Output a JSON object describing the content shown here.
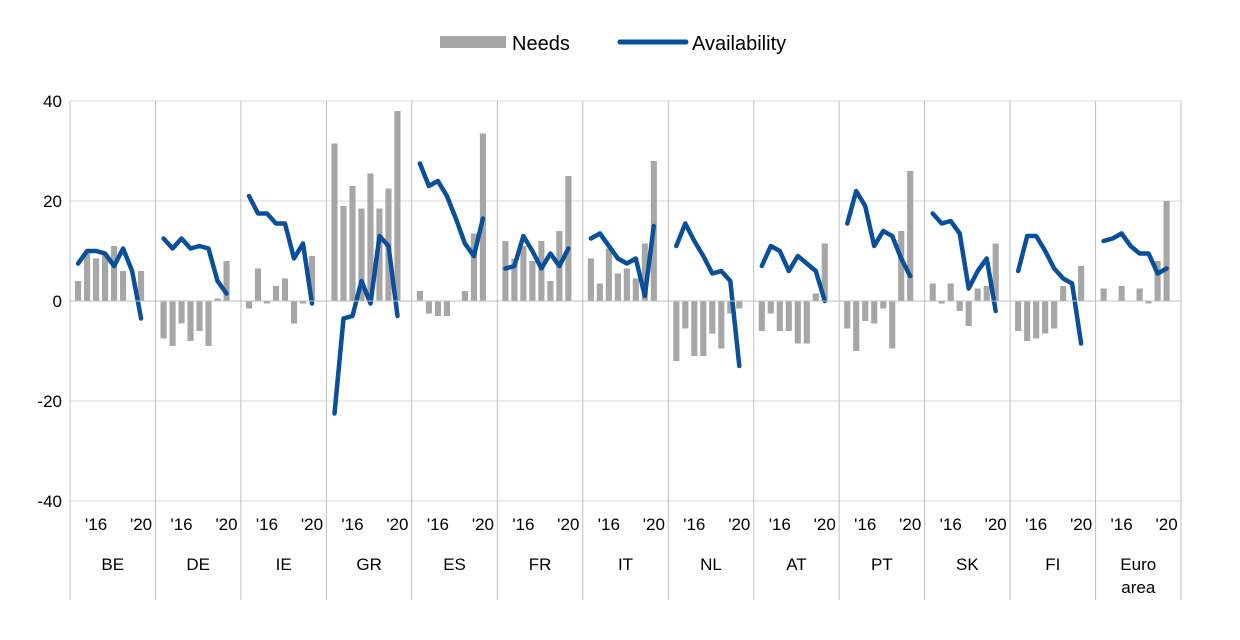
{
  "chart_data": {
    "type": "bar+line",
    "yticks": [
      40,
      20,
      0,
      -20,
      -40
    ],
    "ylim": [
      -40,
      40
    ],
    "grid": true,
    "legend_placement": "top-center",
    "colors": {
      "needs": "#a6a6a6",
      "availability": "#0a4f9a",
      "grid": "#d9d9d9",
      "axis": "#bfbfbf"
    },
    "series": [
      {
        "name": "Needs",
        "kind": "bar"
      },
      {
        "name": "Availability",
        "kind": "line"
      }
    ],
    "groups": [
      {
        "label_lines": [
          "BE"
        ],
        "year_ticks": [
          "'16",
          "'20"
        ],
        "needs": [
          4,
          9.5,
          8.5,
          9.5,
          11,
          6,
          null,
          6
        ],
        "availability": [
          7.5,
          10,
          10,
          9.5,
          7,
          10.5,
          6,
          -3.5
        ]
      },
      {
        "label_lines": [
          "DE"
        ],
        "year_ticks": [
          "'16",
          "'20"
        ],
        "needs": [
          -7.5,
          -9,
          -4.5,
          -8,
          -6,
          -9,
          0.5,
          8
        ],
        "availability": [
          12.5,
          10.5,
          12.5,
          10.5,
          11,
          10.5,
          4,
          1.5
        ]
      },
      {
        "label_lines": [
          "IE"
        ],
        "year_ticks": [
          "'16",
          "'20"
        ],
        "needs": [
          -1.5,
          6.5,
          -0.5,
          3,
          4.5,
          -4.5,
          -0.5,
          9
        ],
        "availability": [
          21,
          17.5,
          17.5,
          15.5,
          15.5,
          8.5,
          11.5,
          -0.5
        ]
      },
      {
        "label_lines": [
          "GR"
        ],
        "year_ticks": [
          "'16",
          "'20"
        ],
        "needs": [
          31.5,
          19,
          23,
          18.5,
          25.5,
          18.5,
          22.5,
          38
        ],
        "availability": [
          -22.5,
          -3.5,
          -3,
          4,
          -0.5,
          13,
          11,
          -3
        ]
      },
      {
        "label_lines": [
          "ES"
        ],
        "year_ticks": [
          "'16",
          "'20"
        ],
        "needs": [
          2,
          -2.5,
          -3,
          -3,
          null,
          2,
          13.5,
          33.5
        ],
        "availability": [
          27.5,
          23,
          24,
          21,
          16.5,
          11.5,
          9,
          16.5
        ]
      },
      {
        "label_lines": [
          "FR"
        ],
        "year_ticks": [
          "'16",
          "'20"
        ],
        "needs": [
          12,
          8.5,
          11,
          8,
          12,
          4,
          14,
          25
        ],
        "availability": [
          6.5,
          7,
          13,
          10,
          6.5,
          9.5,
          7,
          10.5
        ]
      },
      {
        "label_lines": [
          "IT"
        ],
        "year_ticks": [
          "'16",
          "'20"
        ],
        "needs": [
          8.5,
          3.5,
          10.5,
          5.5,
          6.5,
          4.5,
          11.5,
          28
        ],
        "availability": [
          12.5,
          13.5,
          11,
          8.5,
          7.5,
          8.5,
          1,
          15
        ]
      },
      {
        "label_lines": [
          "NL"
        ],
        "year_ticks": [
          "'16",
          "'20"
        ],
        "needs": [
          -12,
          -5.5,
          -11,
          -11,
          -6.5,
          -9.5,
          -2.5,
          -1.5
        ],
        "availability": [
          11,
          15.5,
          12,
          9,
          5.5,
          6,
          4,
          -13
        ]
      },
      {
        "label_lines": [
          "AT"
        ],
        "year_ticks": [
          "'16",
          "'20"
        ],
        "needs": [
          -6,
          -2.5,
          -6,
          -6,
          -8.5,
          -8.5,
          1.5,
          11.5
        ],
        "availability": [
          7,
          11,
          10,
          6,
          9,
          7.5,
          6,
          0
        ]
      },
      {
        "label_lines": [
          "PT"
        ],
        "year_ticks": [
          "'16",
          "'20"
        ],
        "needs": [
          -5.5,
          -10,
          -4,
          -4.5,
          -1.5,
          -9.5,
          14,
          26
        ],
        "availability": [
          15.5,
          22,
          19,
          11,
          14,
          13,
          8.5,
          5
        ]
      },
      {
        "label_lines": [
          "SK"
        ],
        "year_ticks": [
          "'16",
          "'20"
        ],
        "needs": [
          3.5,
          -0.5,
          3.5,
          -2,
          -5,
          2.5,
          3,
          11.5
        ],
        "availability": [
          17.5,
          15.5,
          16,
          13.5,
          2.5,
          6,
          8.5,
          -2
        ]
      },
      {
        "label_lines": [
          "FI"
        ],
        "year_ticks": [
          "'16",
          "'20"
        ],
        "needs": [
          -6,
          -8,
          -7.5,
          -6.5,
          -5.5,
          3,
          null,
          7
        ],
        "availability": [
          6,
          13,
          13,
          10,
          6.5,
          4.5,
          3.5,
          -8.5
        ]
      },
      {
        "label_lines": [
          "Euro",
          "area"
        ],
        "year_ticks": [
          "'16",
          "'20"
        ],
        "needs": [
          2.5,
          null,
          3,
          null,
          2.5,
          -0.5,
          8,
          20
        ],
        "availability": [
          12,
          12.5,
          13.5,
          11,
          9.5,
          9.5,
          5.5,
          6.5
        ]
      }
    ]
  }
}
